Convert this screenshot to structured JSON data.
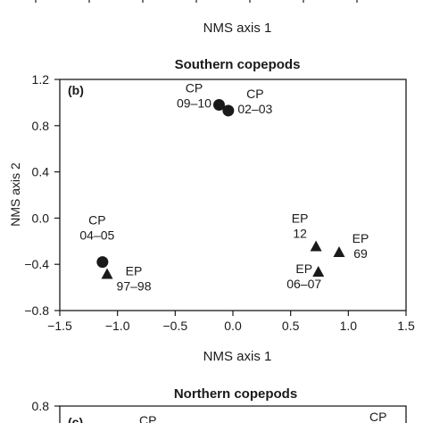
{
  "top_fragment": {
    "xlabel": "NMS axis 1"
  },
  "chart_data": [
    {
      "type": "scatter",
      "title": "Southern copepods",
      "panel_label": "(b)",
      "xlabel": "NMS axis 1",
      "ylabel": "NMS axis 2",
      "xlim": [
        -1.5,
        1.5
      ],
      "ylim": [
        -0.8,
        1.2
      ],
      "x_ticks": [
        "−1.5",
        "−1.0",
        "−0.5",
        "0.0",
        "0.5",
        "1.0",
        "1.5"
      ],
      "y_ticks": [
        "1.2",
        "0.8",
        "0.4",
        "0.0",
        "−0.4",
        "−0.8"
      ],
      "grid": false,
      "series": [
        {
          "marker": "circle",
          "points": [
            {
              "x": -0.12,
              "y": 0.98,
              "label": [
                "CP",
                "09–10"
              ]
            },
            {
              "x": -0.04,
              "y": 0.93,
              "label": [
                "CP",
                "02–03"
              ]
            },
            {
              "x": -1.13,
              "y": -0.38,
              "label": [
                "CP",
                "04–05"
              ]
            }
          ]
        },
        {
          "marker": "triangle",
          "points": [
            {
              "x": -1.09,
              "y": -0.48,
              "label": [
                "EP",
                "97–98"
              ]
            },
            {
              "x": 0.72,
              "y": -0.24,
              "label": [
                "EP",
                "12"
              ]
            },
            {
              "x": 0.92,
              "y": -0.29,
              "label": [
                "EP",
                "69"
              ]
            },
            {
              "x": 0.74,
              "y": -0.46,
              "label": [
                "EP",
                "06–07"
              ]
            }
          ]
        }
      ]
    },
    {
      "type": "scatter",
      "title": "Northern copepods",
      "panel_label": "(c)",
      "ylim_top": "0.8",
      "visible_labels": [
        "CP",
        "CP"
      ]
    }
  ]
}
